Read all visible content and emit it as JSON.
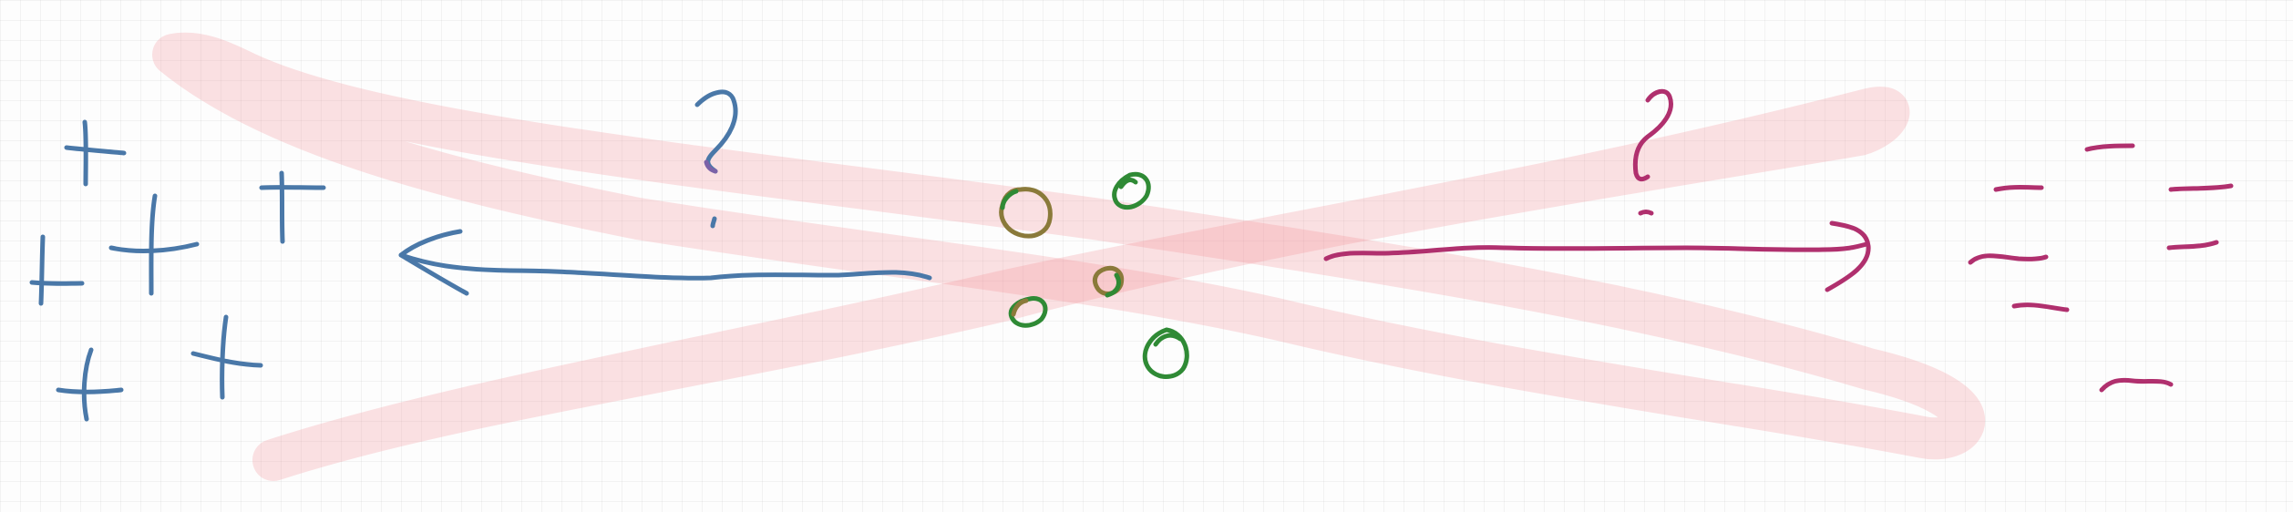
{
  "canvas": {
    "background": "#fdfdfd",
    "grid": true
  },
  "colors": {
    "blue": "#4a78a8",
    "purple": "#b0306e",
    "green": "#2f8a35",
    "olive": "#8a7a3a",
    "violet": "#7b62a8",
    "highlight": "#f07a86"
  },
  "diagram": {
    "description_elements": [
      "plus-cluster-left",
      "left-arrow",
      "question-mark-left",
      "circle-cluster-center",
      "question-mark-right",
      "right-arrow",
      "minus-cluster-right",
      "red-x-highlight"
    ]
  }
}
